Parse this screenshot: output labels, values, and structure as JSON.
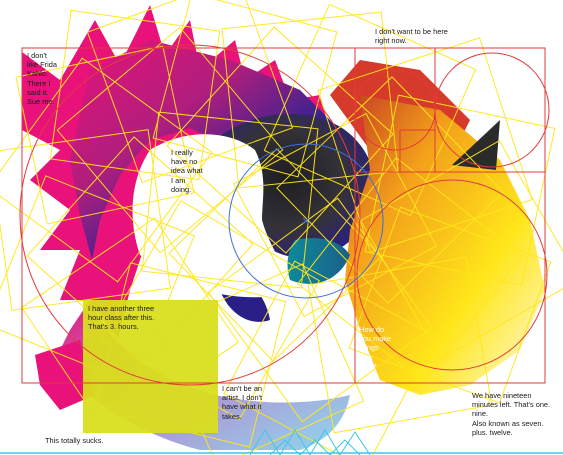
{
  "colors": {
    "magenta": "#e8127a",
    "navy": "#2a1f86",
    "dark": "#2b2b2b",
    "orange": "#f3a11a",
    "yellow": "#ffe61a",
    "lime": "#d9de1e",
    "cyan": "#3fc6e8",
    "red_frame": "#e23b3b",
    "blue_circle": "#3d6fe0"
  },
  "notes": {
    "frida": [
      "I don't",
      "like Frida",
      "Kahlo.",
      "There I",
      "said it.",
      "Sue me."
    ],
    "here": [
      "I don't want to be here",
      "right now."
    ],
    "idea": [
      "I really",
      "have no",
      "idea what",
      "I am",
      "doing."
    ],
    "class": [
      "I have another three",
      "hour class after this.",
      "That's 3. hours."
    ],
    "cool": [
      "How do",
      "you make",
      "things",
      "look",
      "cool?"
    ],
    "artist": [
      "I can't be an",
      "artist. I don't",
      "have what it",
      "takes."
    ],
    "nineteen": [
      "We have nineteen",
      "minutes left. That's one.",
      "nine.",
      "Also known as seven.",
      "plus. twelve."
    ],
    "sucks": "This totally sucks."
  }
}
